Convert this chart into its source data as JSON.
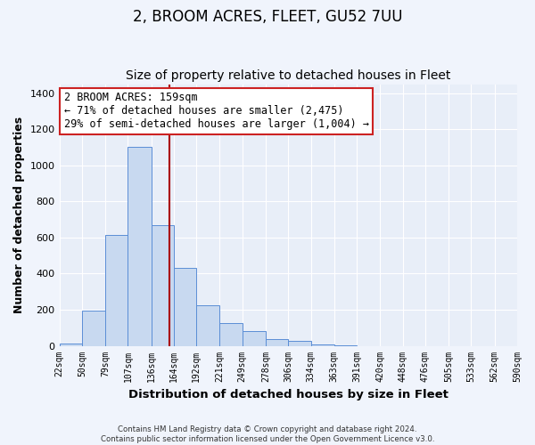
{
  "title": "2, BROOM ACRES, FLEET, GU52 7UU",
  "subtitle": "Size of property relative to detached houses in Fleet",
  "xlabel": "Distribution of detached houses by size in Fleet",
  "ylabel": "Number of detached properties",
  "bar_values": [
    15,
    195,
    615,
    1105,
    670,
    430,
    225,
    125,
    80,
    35,
    25,
    10,
    5,
    0,
    0,
    0,
    0,
    0,
    0,
    0
  ],
  "bin_labels": [
    "22sqm",
    "50sqm",
    "79sqm",
    "107sqm",
    "136sqm",
    "164sqm",
    "192sqm",
    "221sqm",
    "249sqm",
    "278sqm",
    "306sqm",
    "334sqm",
    "363sqm",
    "391sqm",
    "420sqm",
    "448sqm",
    "476sqm",
    "505sqm",
    "533sqm",
    "562sqm",
    "590sqm"
  ],
  "bin_edges": [
    22,
    50,
    79,
    107,
    136,
    164,
    192,
    221,
    249,
    278,
    306,
    334,
    363,
    391,
    420,
    448,
    476,
    505,
    533,
    562,
    590
  ],
  "bar_color": "#c8d9f0",
  "bar_edge_color": "#5b8ed6",
  "vline_x": 159,
  "vline_color": "#aa0000",
  "annotation_text_line1": "2 BROOM ACRES: 159sqm",
  "annotation_text_line2": "← 71% of detached houses are smaller (2,475)",
  "annotation_text_line3": "29% of semi-detached houses are larger (1,004) →",
  "ylim": [
    0,
    1450
  ],
  "yticks": [
    0,
    200,
    400,
    600,
    800,
    1000,
    1200,
    1400
  ],
  "background_color": "#f0f4fc",
  "plot_bg_color": "#e8eef8",
  "grid_color": "#ffffff",
  "footer_line1": "Contains HM Land Registry data © Crown copyright and database right 2024.",
  "footer_line2": "Contains public sector information licensed under the Open Government Licence v3.0.",
  "title_fontsize": 12,
  "subtitle_fontsize": 10,
  "xlabel_fontsize": 9.5,
  "ylabel_fontsize": 9
}
